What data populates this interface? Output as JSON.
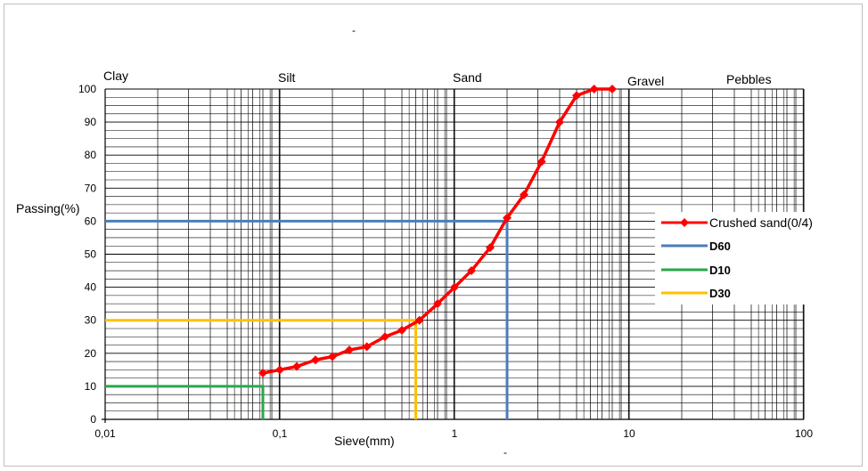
{
  "chart_data": {
    "type": "line",
    "x_scale": "log",
    "xlim": [
      0.01,
      100
    ],
    "ylim": [
      0,
      100
    ],
    "grid": true,
    "legend_position": "right",
    "ylabel": "Passing(%)",
    "xlabel": "Sieve(mm)",
    "x_tick_labels": [
      "0,01",
      "0,1",
      "1",
      "10",
      "100"
    ],
    "x_ticks": [
      0.01,
      0.1,
      1,
      10,
      100
    ],
    "y_ticks": [
      0,
      10,
      20,
      30,
      40,
      50,
      60,
      70,
      80,
      90,
      100
    ],
    "soil_classes": [
      {
        "label": "Clay",
        "x": 0.01
      },
      {
        "label": "Silt",
        "x": 0.1
      },
      {
        "label": "Sand",
        "x": 1
      },
      {
        "label": "Gravel",
        "x": 10
      },
      {
        "label": "Pebbles",
        "x": 50
      }
    ],
    "series": [
      {
        "name": "Crushed sand(0/4)",
        "color": "#ff0000",
        "x": [
          0.08,
          0.1,
          0.125,
          0.16,
          0.2,
          0.25,
          0.315,
          0.4,
          0.5,
          0.63,
          0.8,
          1,
          1.25,
          1.6,
          2,
          2.5,
          3.15,
          4,
          5,
          6.3,
          8
        ],
        "y": [
          14,
          15,
          16,
          18,
          19,
          21,
          22,
          25,
          27,
          30,
          35,
          40,
          45,
          52,
          61,
          68,
          78,
          90,
          98,
          100,
          100
        ]
      },
      {
        "name": "D60",
        "color": "#4a7ebb",
        "x": [
          0.01,
          2,
          2
        ],
        "y": [
          60,
          60,
          0
        ]
      },
      {
        "name": "D10",
        "color": "#2aa84a",
        "x": [
          0.01,
          0.08,
          0.08
        ],
        "y": [
          10,
          10,
          0
        ]
      },
      {
        "name": "D30",
        "color": "#ffc000",
        "x": [
          0.01,
          0.6,
          0.6
        ],
        "y": [
          30,
          30,
          0
        ]
      }
    ]
  },
  "page_marks": {
    "top": "-",
    "bottom": "-"
  }
}
